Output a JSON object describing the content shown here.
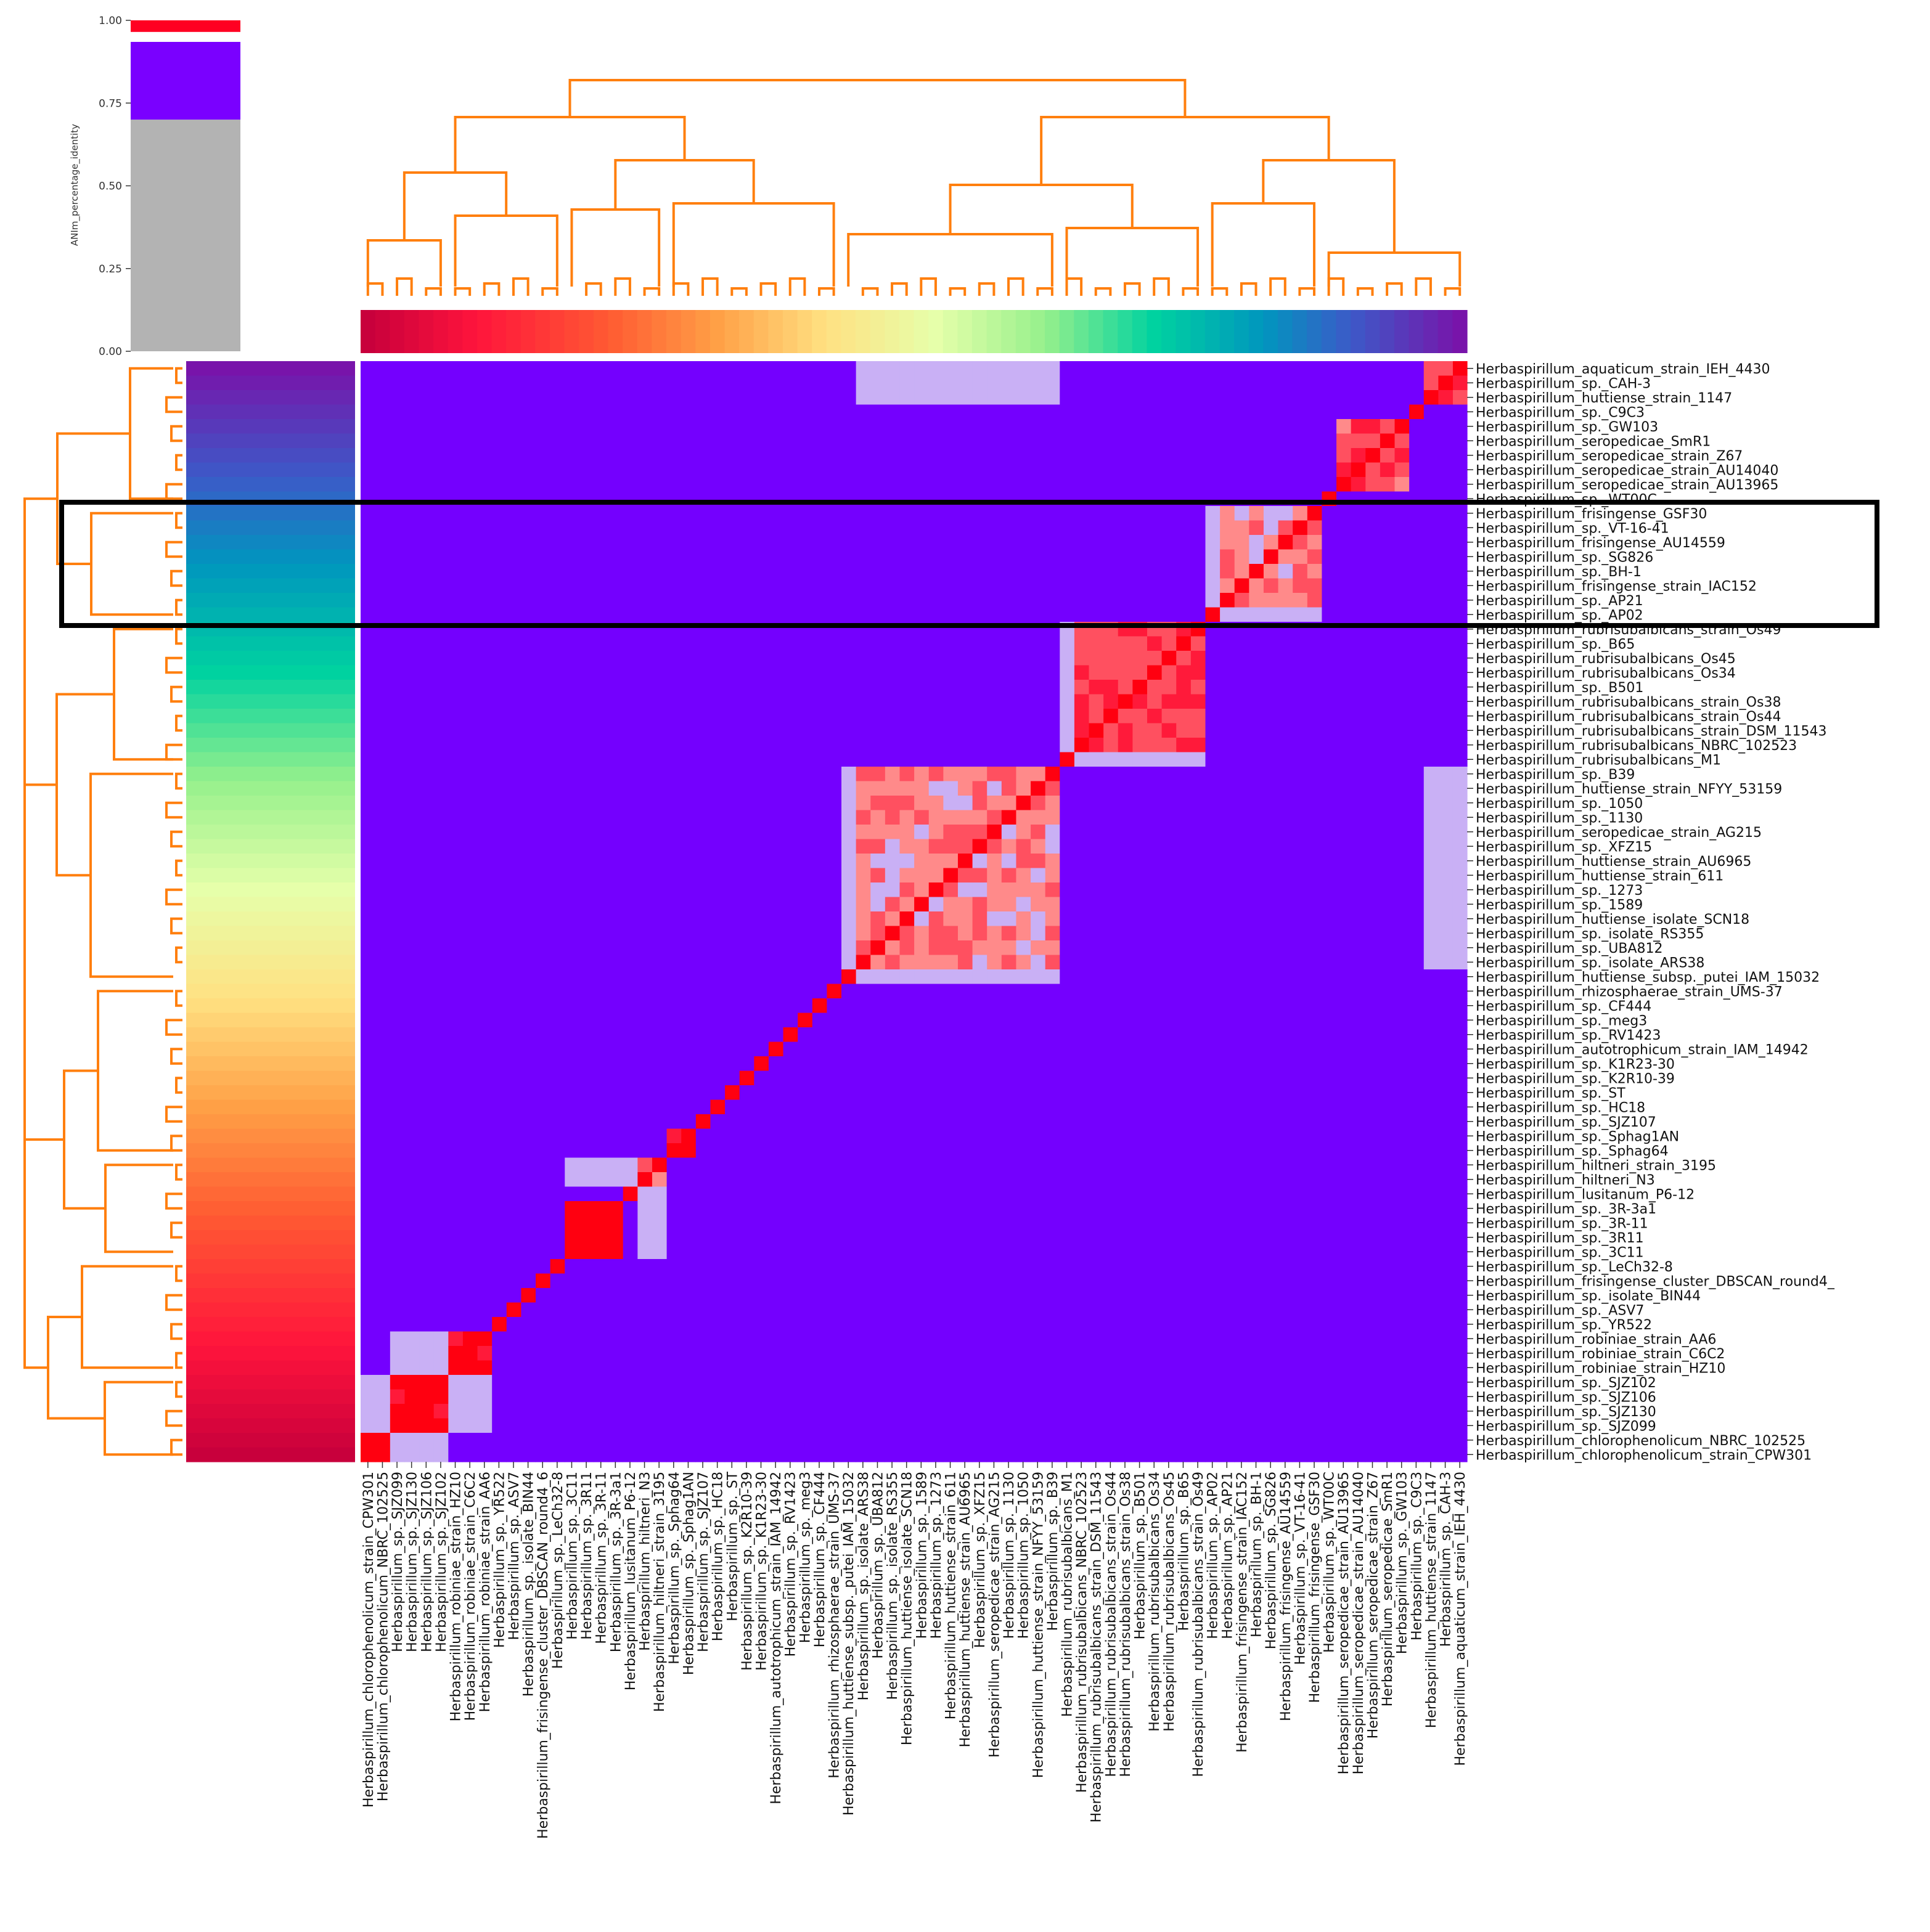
{
  "chart_data": {
    "type": "heatmap",
    "title": "",
    "colorbar": {
      "label": "ANIm_percentage_identity",
      "ticks": [
        "0.00",
        "0.25",
        "0.50",
        "0.75",
        "1.00"
      ],
      "segments": [
        {
          "from": 0.0,
          "to": 0.7,
          "color": "#b3b3b3"
        },
        {
          "from": 0.7,
          "to": 0.935,
          "color": "#7a00ff"
        },
        {
          "from": 0.935,
          "to": 0.965,
          "color": "#ffffff"
        },
        {
          "from": 0.965,
          "to": 1.0,
          "color": "#ff0022"
        }
      ]
    },
    "labels_matrix_top_to_bottom": [
      "Herbaspirillum_aquaticum_strain_IEH_4430",
      "Herbaspirillum_sp._CAH-3",
      "Herbaspirillum_huttiense_strain_1147",
      "Herbaspirillum_sp._C9C3",
      "Herbaspirillum_sp._GW103",
      "Herbaspirillum_seropedicae_SmR1",
      "Herbaspirillum_seropedicae_strain_Z67",
      "Herbaspirillum_seropedicae_strain_AU14040",
      "Herbaspirillum_seropedicae_strain_AU13965",
      "Herbaspirillum_sp._WT00C",
      "Herbaspirillum_frisingense_GSF30",
      "Herbaspirillum_sp._VT-16-41",
      "Herbaspirillum_frisingense_AU14559",
      "Herbaspirillum_sp._SG826",
      "Herbaspirillum_sp._BH-1",
      "Herbaspirillum_frisingense_strain_IAC152",
      "Herbaspirillum_sp._AP21",
      "Herbaspirillum_sp._AP02",
      "Herbaspirillum_rubrisubalbicans_strain_Os49",
      "Herbaspirillum_sp._B65",
      "Herbaspirillum_rubrisubalbicans_Os45",
      "Herbaspirillum_rubrisubalbicans_Os34",
      "Herbaspirillum_sp._B501",
      "Herbaspirillum_rubrisubalbicans_strain_Os38",
      "Herbaspirillum_rubrisubalbicans_strain_Os44",
      "Herbaspirillum_rubrisubalbicans_strain_DSM_11543",
      "Herbaspirillum_rubrisubalbicans_NBRC_102523",
      "Herbaspirillum_rubrisubalbicans_M1",
      "Herbaspirillum_sp._B39",
      "Herbaspirillum_huttiense_strain_NFYY_53159",
      "Herbaspirillum_sp._1050",
      "Herbaspirillum_sp._1130",
      "Herbaspirillum_seropedicae_strain_AG215",
      "Herbaspirillum_sp._XFZ15",
      "Herbaspirillum_huttiense_strain_AU6965",
      "Herbaspirillum_huttiense_strain_611",
      "Herbaspirillum_sp._1273",
      "Herbaspirillum_sp._1589",
      "Herbaspirillum_huttiense_isolate_SCN18",
      "Herbaspirillum_sp._isolate_RS355",
      "Herbaspirillum_sp._UBA812",
      "Herbaspirillum_sp._isolate_ARS38",
      "Herbaspirillum_huttiense_subsp._putei_IAM_15032",
      "Herbaspirillum_rhizosphaerae_strain_UMS-37",
      "Herbaspirillum_sp._CF444",
      "Herbaspirillum_sp._meg3",
      "Herbaspirillum_sp._RV1423",
      "Herbaspirillum_autotrophicum_strain_IAM_14942",
      "Herbaspirillum_sp._K1R23-30",
      "Herbaspirillum_sp._K2R10-39",
      "Herbaspirillum_sp._ST",
      "Herbaspirillum_sp._HC18",
      "Herbaspirillum_sp._SJZ107",
      "Herbaspirillum_sp._Sphag1AN",
      "Herbaspirillum_sp._Sphag64",
      "Herbaspirillum_hiltneri_strain_3195",
      "Herbaspirillum_hiltneri_N3",
      "Herbaspirillum_lusitanum_P6-12",
      "Herbaspirillum_sp._3R-3a1",
      "Herbaspirillum_sp._3R-11",
      "Herbaspirillum_sp._3R11",
      "Herbaspirillum_sp._3C11",
      "Herbaspirillum_sp._LeCh32-8",
      "Herbaspirillum_frisingense_cluster_DBSCAN_round4_",
      "Herbaspirillum_sp._isolate_BIN44",
      "Herbaspirillum_sp._ASV7",
      "Herbaspirillum_sp._YR522",
      "Herbaspirillum_robiniae_strain_AA6",
      "Herbaspirillum_robiniae_strain_C6C2",
      "Herbaspirillum_robiniae_strain_HZ10",
      "Herbaspirillum_sp._SJZ102",
      "Herbaspirillum_sp._SJZ106",
      "Herbaspirillum_sp._SJZ130",
      "Herbaspirillum_sp._SJZ099",
      "Herbaspirillum_chlorophenolicum_NBRC_102525",
      "Herbaspirillum_chlorophenolicum_strain_CPW301"
    ],
    "column_label_overrides": {
      "63": "Herbaspirillum_frisingense_cluster_DBSCAN_round4_6"
    },
    "cluster_blocks": [
      {
        "start": 0,
        "end": 2,
        "value": 0.99
      },
      {
        "start": 3,
        "end": 3,
        "value": 1.0
      },
      {
        "start": 4,
        "end": 8,
        "value": 0.985
      },
      {
        "start": 9,
        "end": 9,
        "value": 1.0
      },
      {
        "start": 10,
        "end": 16,
        "value": 0.975
      },
      {
        "start": 17,
        "end": 17,
        "value": 1.0
      },
      {
        "start": 18,
        "end": 26,
        "value": 0.985
      },
      {
        "start": 27,
        "end": 27,
        "value": 1.0
      },
      {
        "start": 28,
        "end": 41,
        "value": 0.975
      },
      {
        "start": 42,
        "end": 42,
        "value": 1.0
      },
      {
        "start": 43,
        "end": 43,
        "value": 1.0
      },
      {
        "start": 44,
        "end": 44,
        "value": 1.0
      },
      {
        "start": 45,
        "end": 45,
        "value": 1.0
      },
      {
        "start": 46,
        "end": 46,
        "value": 1.0
      },
      {
        "start": 47,
        "end": 47,
        "value": 1.0
      },
      {
        "start": 48,
        "end": 48,
        "value": 1.0
      },
      {
        "start": 49,
        "end": 49,
        "value": 1.0
      },
      {
        "start": 50,
        "end": 50,
        "value": 1.0
      },
      {
        "start": 51,
        "end": 51,
        "value": 1.0
      },
      {
        "start": 52,
        "end": 52,
        "value": 1.0
      },
      {
        "start": 53,
        "end": 54,
        "value": 1.0
      },
      {
        "start": 55,
        "end": 56,
        "value": 0.98
      },
      {
        "start": 57,
        "end": 57,
        "value": 1.0
      },
      {
        "start": 58,
        "end": 61,
        "value": 1.0
      },
      {
        "start": 62,
        "end": 62,
        "value": 1.0
      },
      {
        "start": 63,
        "end": 63,
        "value": 1.0
      },
      {
        "start": 64,
        "end": 64,
        "value": 1.0
      },
      {
        "start": 65,
        "end": 65,
        "value": 1.0
      },
      {
        "start": 66,
        "end": 66,
        "value": 1.0
      },
      {
        "start": 67,
        "end": 69,
        "value": 1.0
      },
      {
        "start": 70,
        "end": 73,
        "value": 1.0
      },
      {
        "start": 74,
        "end": 75,
        "value": 1.0
      }
    ],
    "background_value": 0.8,
    "highlighted_rows": {
      "start": 10,
      "end": 17
    }
  }
}
